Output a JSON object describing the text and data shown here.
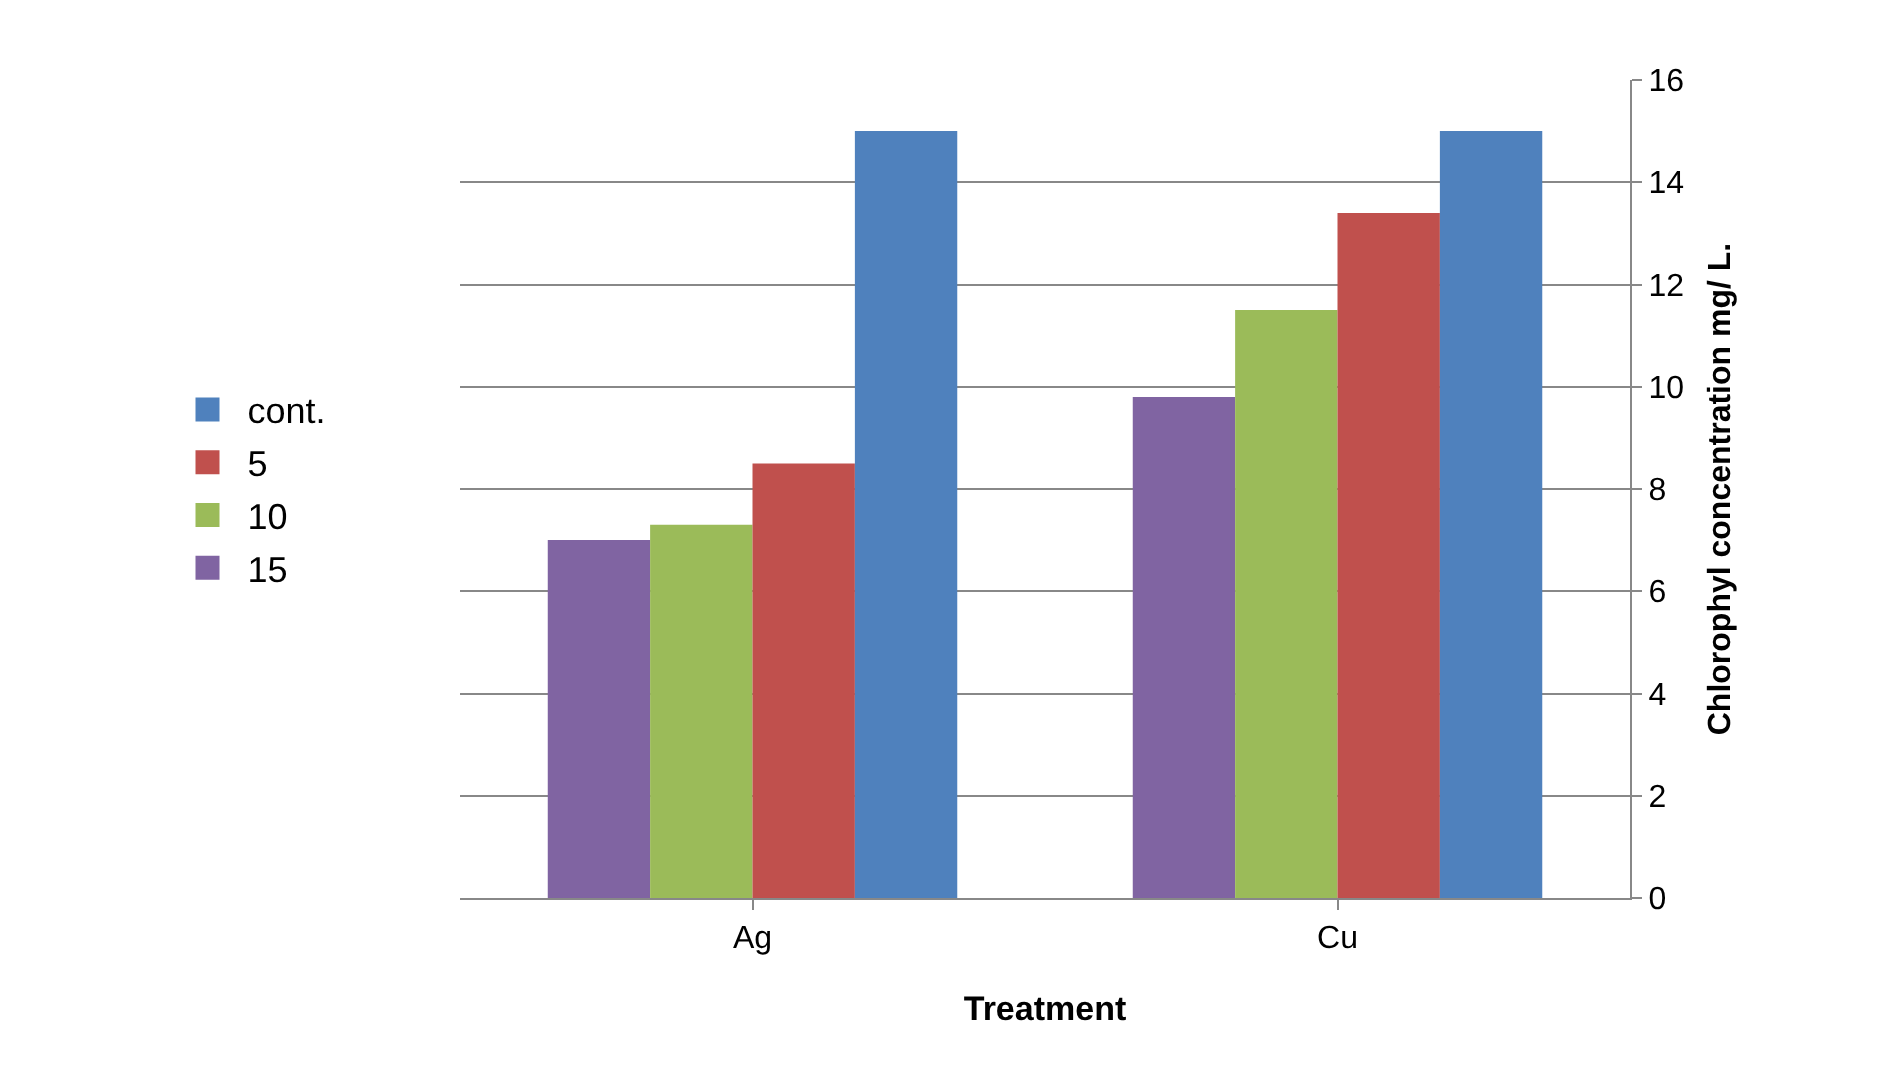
{
  "chart_data": {
    "type": "bar",
    "xlabel": "Treatment",
    "ylabel": "Chlorophyl concentration mg/ L.",
    "categories": [
      "Ag",
      "Cu"
    ],
    "series": [
      {
        "name": "15",
        "color": "#8064a2",
        "values": [
          7.0,
          9.8
        ]
      },
      {
        "name": "10",
        "color": "#9bbb59",
        "values": [
          7.3,
          11.5
        ]
      },
      {
        "name": "5",
        "color": "#c0504d",
        "values": [
          8.5,
          13.4
        ]
      },
      {
        "name": "cont.",
        "color": "#4f81bd",
        "values": [
          15.0,
          15.0
        ]
      }
    ],
    "ylim": [
      0,
      16
    ],
    "yticks": [
      0,
      2,
      4,
      6,
      8,
      10,
      12,
      14,
      16
    ],
    "grid": "y",
    "legend": "left"
  }
}
